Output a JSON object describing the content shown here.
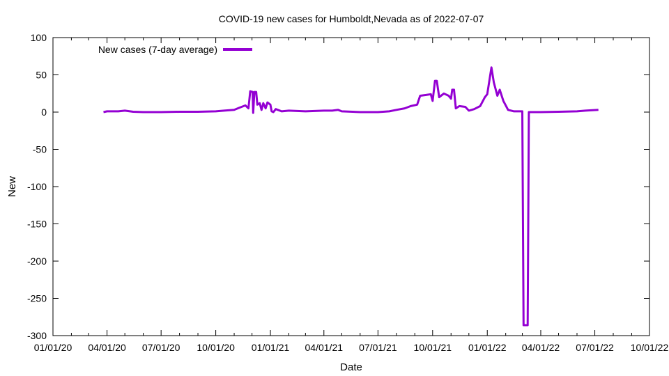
{
  "chart_data": {
    "type": "line",
    "title": "COVID-19 new cases for Humboldt,Nevada as of 2022-07-07",
    "xlabel": "Date",
    "ylabel": "New",
    "ylim": [
      -300,
      100
    ],
    "y_ticks": [
      100,
      50,
      0,
      -50,
      -100,
      -150,
      -200,
      -250,
      -300
    ],
    "x_tick_labels": [
      "01/01/20",
      "04/01/20",
      "07/01/20",
      "10/01/20",
      "01/01/21",
      "04/01/21",
      "07/01/21",
      "10/01/21",
      "01/01/22",
      "04/01/22",
      "07/01/22",
      "10/01/22"
    ],
    "x_tick_dates": [
      "2020-01-01",
      "2020-04-01",
      "2020-07-01",
      "2020-10-01",
      "2021-01-01",
      "2021-04-01",
      "2021-07-01",
      "2021-10-01",
      "2022-01-01",
      "2022-04-01",
      "2022-07-01",
      "2022-10-01"
    ],
    "xlim": [
      "2020-01-01",
      "2022-10-01"
    ],
    "grid": false,
    "legend_position": "top-left",
    "series": [
      {
        "name": "New cases (7-day average)",
        "color": "#9400d3",
        "points": [
          [
            "2020-03-26",
            0
          ],
          [
            "2020-04-01",
            1
          ],
          [
            "2020-04-10",
            1
          ],
          [
            "2020-04-20",
            1
          ],
          [
            "2020-05-01",
            2
          ],
          [
            "2020-05-15",
            0.5
          ],
          [
            "2020-06-01",
            0
          ],
          [
            "2020-07-01",
            0
          ],
          [
            "2020-08-01",
            0.5
          ],
          [
            "2020-09-01",
            0.5
          ],
          [
            "2020-10-01",
            1
          ],
          [
            "2020-10-15",
            2
          ],
          [
            "2020-11-01",
            3
          ],
          [
            "2020-11-10",
            6
          ],
          [
            "2020-11-20",
            9
          ],
          [
            "2020-11-25",
            5
          ],
          [
            "2020-11-28",
            28
          ],
          [
            "2020-12-02",
            27
          ],
          [
            "2020-12-03",
            -1
          ],
          [
            "2020-12-05",
            27
          ],
          [
            "2020-12-08",
            27
          ],
          [
            "2020-12-10",
            10
          ],
          [
            "2020-12-14",
            12
          ],
          [
            "2020-12-17",
            3
          ],
          [
            "2020-12-20",
            12
          ],
          [
            "2020-12-24",
            5
          ],
          [
            "2020-12-27",
            13
          ],
          [
            "2021-01-01",
            10
          ],
          [
            "2021-01-03",
            1
          ],
          [
            "2021-01-06",
            0
          ],
          [
            "2021-01-10",
            4
          ],
          [
            "2021-01-20",
            1
          ],
          [
            "2021-02-01",
            2
          ],
          [
            "2021-03-01",
            1
          ],
          [
            "2021-04-01",
            2
          ],
          [
            "2021-04-15",
            2
          ],
          [
            "2021-04-25",
            3
          ],
          [
            "2021-05-01",
            1
          ],
          [
            "2021-06-01",
            0
          ],
          [
            "2021-07-01",
            0
          ],
          [
            "2021-07-20",
            1
          ],
          [
            "2021-08-01",
            3
          ],
          [
            "2021-08-15",
            5
          ],
          [
            "2021-08-25",
            8
          ],
          [
            "2021-09-05",
            10
          ],
          [
            "2021-09-10",
            22
          ],
          [
            "2021-09-20",
            23
          ],
          [
            "2021-09-28",
            24
          ],
          [
            "2021-10-01",
            15
          ],
          [
            "2021-10-05",
            42
          ],
          [
            "2021-10-08",
            42
          ],
          [
            "2021-10-12",
            20
          ],
          [
            "2021-10-20",
            25
          ],
          [
            "2021-10-28",
            22
          ],
          [
            "2021-11-01",
            18
          ],
          [
            "2021-11-03",
            30
          ],
          [
            "2021-11-06",
            30
          ],
          [
            "2021-11-09",
            5
          ],
          [
            "2021-11-15",
            8
          ],
          [
            "2021-11-25",
            7
          ],
          [
            "2021-12-01",
            2
          ],
          [
            "2021-12-10",
            4
          ],
          [
            "2021-12-20",
            8
          ],
          [
            "2021-12-28",
            20
          ],
          [
            "2022-01-01",
            24
          ],
          [
            "2022-01-05",
            45
          ],
          [
            "2022-01-08",
            60
          ],
          [
            "2022-01-12",
            40
          ],
          [
            "2022-01-18",
            22
          ],
          [
            "2022-01-22",
            30
          ],
          [
            "2022-01-28",
            15
          ],
          [
            "2022-02-05",
            3
          ],
          [
            "2022-02-15",
            1
          ],
          [
            "2022-03-01",
            1
          ],
          [
            "2022-03-03",
            -286
          ],
          [
            "2022-03-10",
            -286
          ],
          [
            "2022-03-12",
            0
          ],
          [
            "2022-04-01",
            0
          ],
          [
            "2022-05-01",
            0.5
          ],
          [
            "2022-06-01",
            1
          ],
          [
            "2022-06-15",
            2
          ],
          [
            "2022-07-07",
            3
          ]
        ]
      }
    ]
  }
}
